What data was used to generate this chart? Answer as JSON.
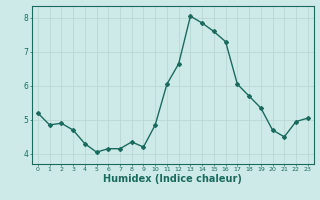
{
  "x": [
    0,
    1,
    2,
    3,
    4,
    5,
    6,
    7,
    8,
    9,
    10,
    11,
    12,
    13,
    14,
    15,
    16,
    17,
    18,
    19,
    20,
    21,
    22,
    23
  ],
  "y": [
    5.2,
    4.85,
    4.9,
    4.7,
    4.3,
    4.05,
    4.15,
    4.15,
    4.35,
    4.2,
    4.85,
    6.05,
    6.65,
    8.05,
    7.85,
    7.6,
    7.3,
    6.05,
    5.7,
    5.35,
    4.7,
    4.5,
    4.95,
    5.05
  ],
  "line_color": "#1a6b5e",
  "marker": "D",
  "markersize": 2,
  "linewidth": 1.0,
  "bg_color": "#ceeae8",
  "grid_color": "#b8d8d6",
  "tick_color": "#1a6b5e",
  "xlabel": "Humidex (Indice chaleur)",
  "xlabel_fontsize": 7,
  "ylabel_ticks": [
    4,
    5,
    6,
    7,
    8
  ],
  "xlim": [
    -0.5,
    23.5
  ],
  "ylim": [
    3.7,
    8.35
  ]
}
